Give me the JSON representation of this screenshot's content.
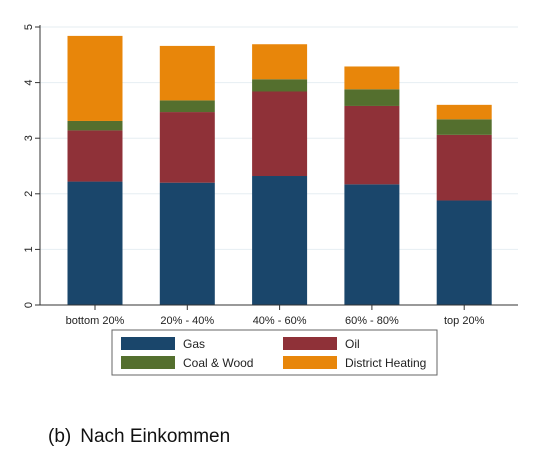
{
  "chart_data": {
    "type": "bar",
    "stacked": true,
    "categories": [
      "bottom 20%",
      "20% - 40%",
      "40% - 60%",
      "60% - 80%",
      "top 20%"
    ],
    "series": [
      {
        "name": "Gas",
        "color": "#1a466b",
        "values": [
          2.22,
          2.2,
          2.32,
          2.17,
          1.88
        ]
      },
      {
        "name": "Oil",
        "color": "#8f3138",
        "values": [
          0.92,
          1.27,
          1.52,
          1.41,
          1.18
        ]
      },
      {
        "name": "Coal & Wood",
        "color": "#546f2e",
        "values": [
          0.17,
          0.21,
          0.22,
          0.3,
          0.28
        ]
      },
      {
        "name": "District Heating",
        "color": "#e8860a",
        "values": [
          1.53,
          0.98,
          0.63,
          0.41,
          0.26
        ]
      }
    ],
    "ylim": [
      0,
      5
    ],
    "yticks": [
      "0",
      "1",
      "2",
      "3",
      "4",
      "5"
    ],
    "grid": true,
    "legend_position": "bottom"
  },
  "caption": {
    "label": "(b)",
    "text": "Nach Einkommen"
  }
}
